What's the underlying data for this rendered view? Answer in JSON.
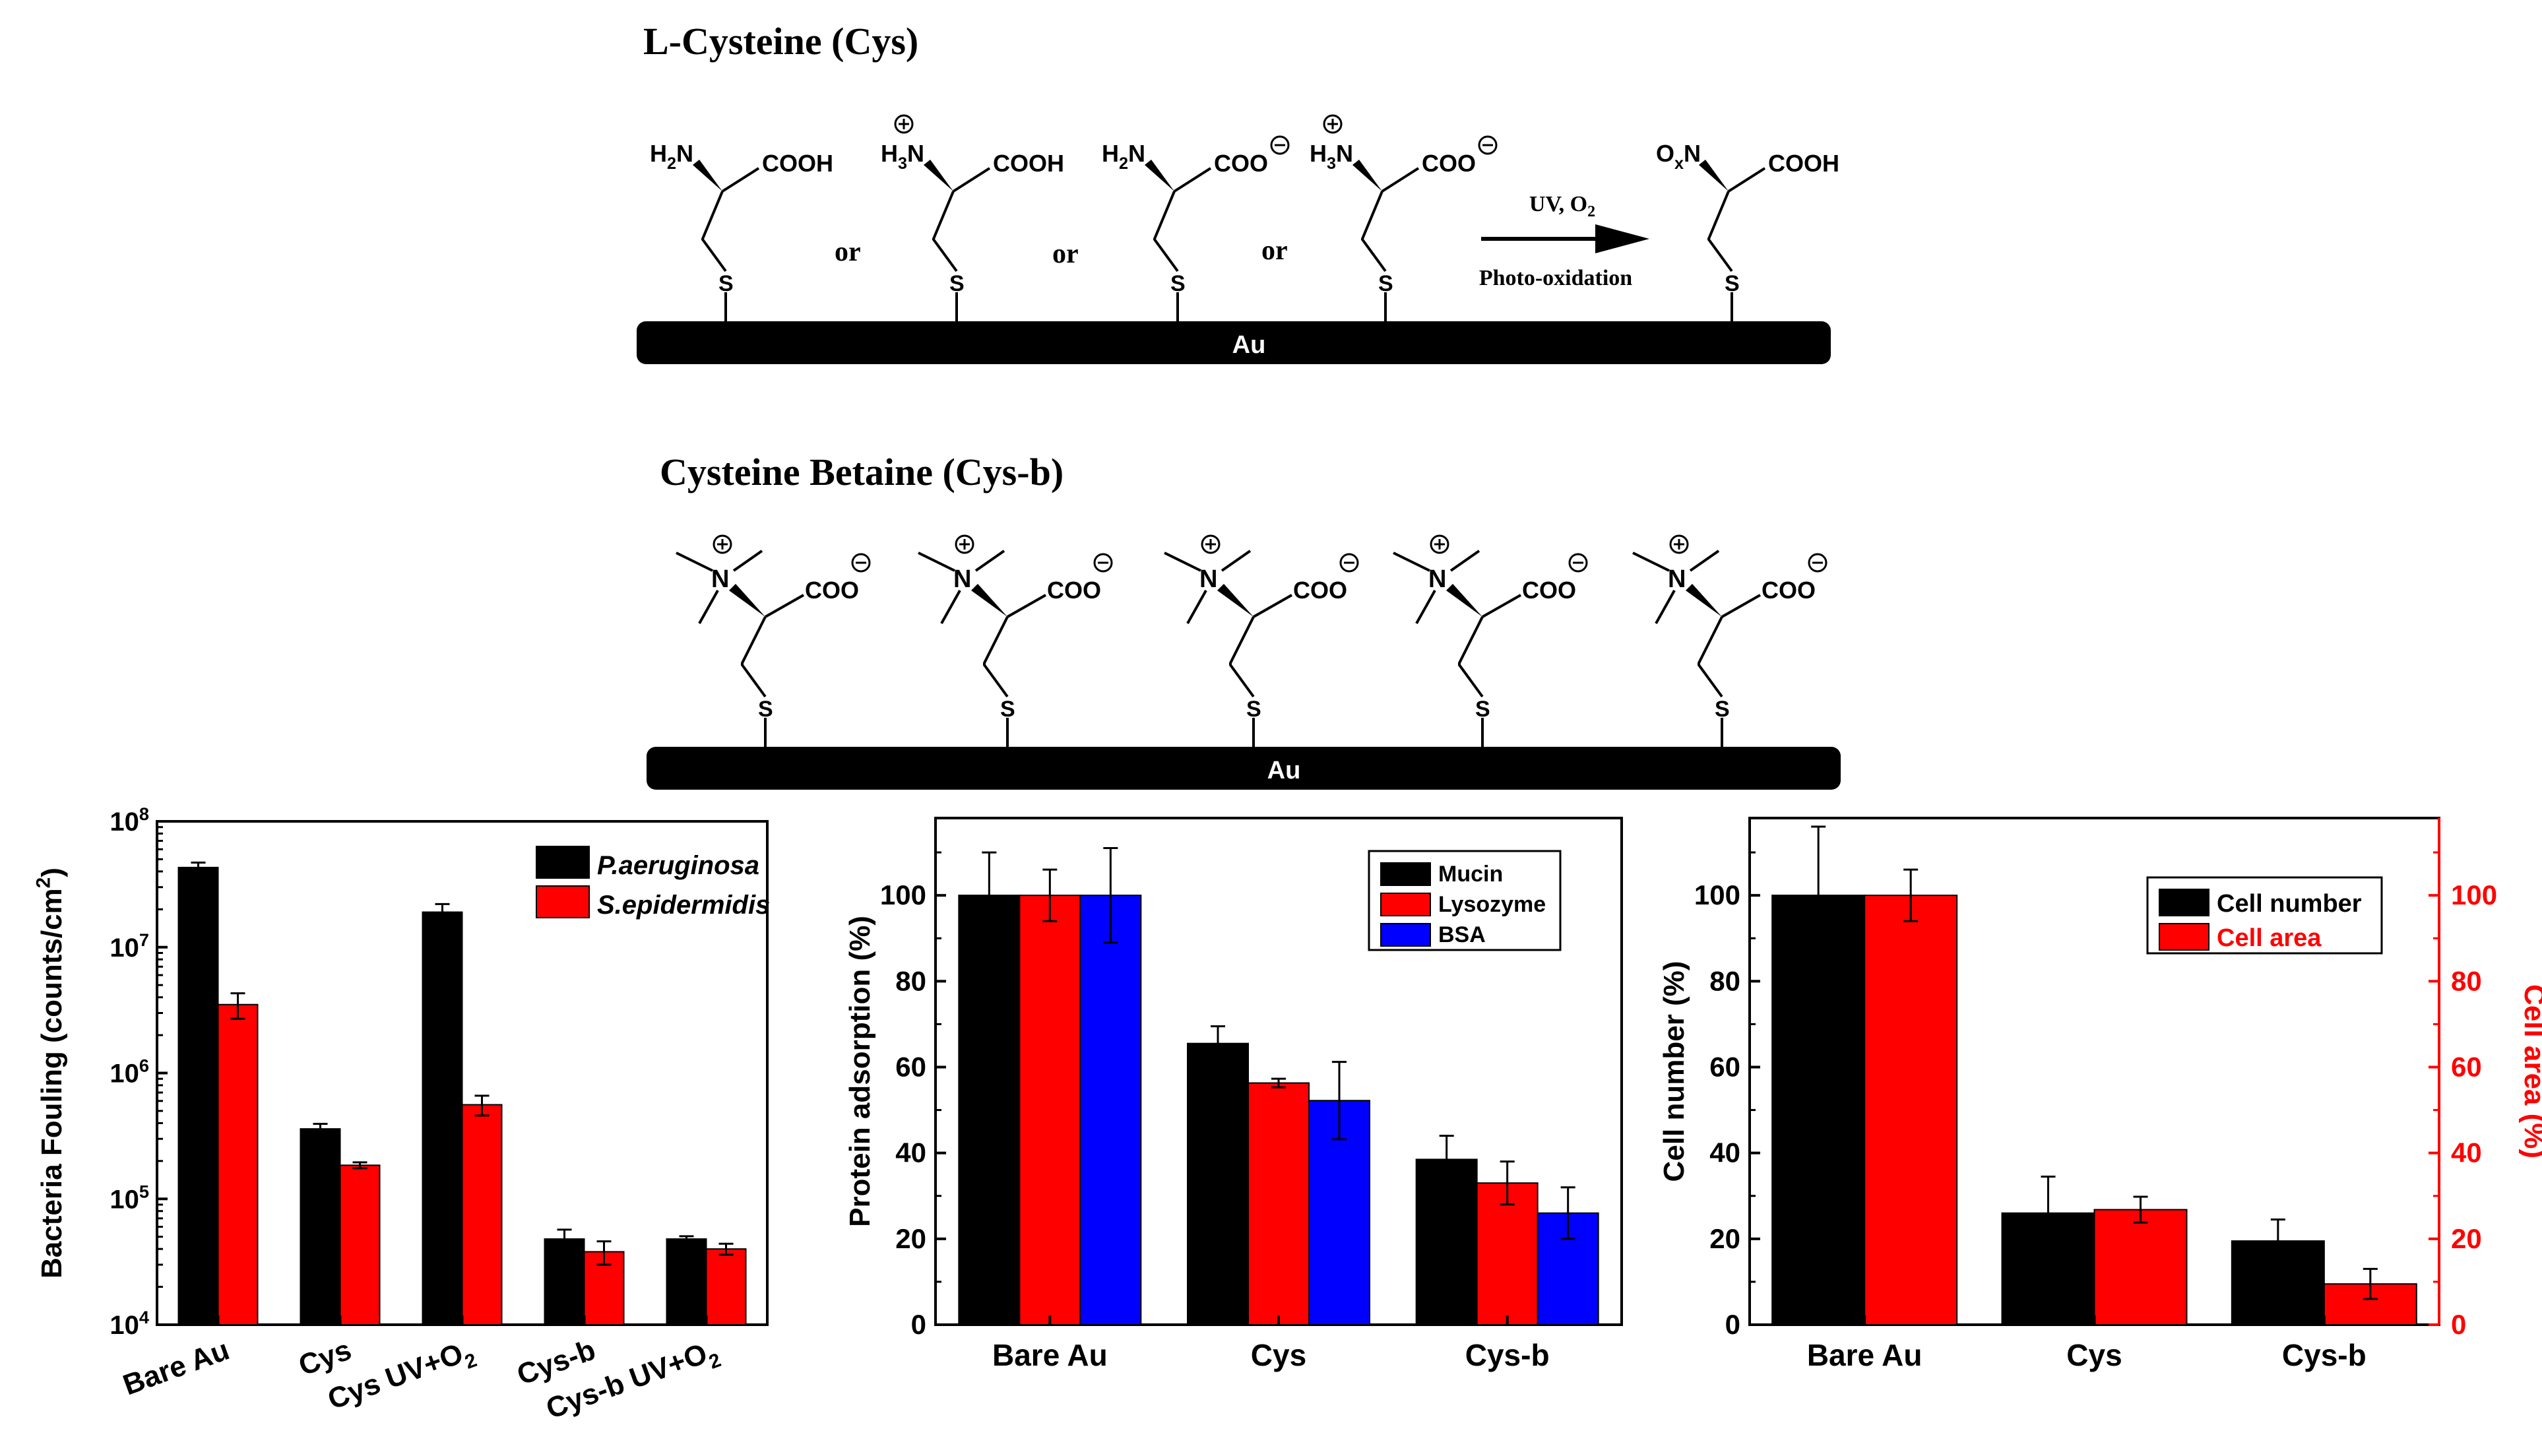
{
  "scheme": {
    "cys_title": "L-Cysteine (Cys)",
    "cysb_title": "Cysteine Betaine (Cys-b)",
    "surface_label": "Au",
    "or_label": "or",
    "arrow_top": "UV, O2",
    "arrow_bottom": "Photo-oxidation",
    "cys_forms": [
      {
        "amine": "H2N",
        "acid": "COOH",
        "amine_charge": "",
        "acid_charge": ""
      },
      {
        "amine": "H3N",
        "acid": "COOH",
        "amine_charge": "⊕",
        "acid_charge": ""
      },
      {
        "amine": "H2N",
        "acid": "COO",
        "amine_charge": "",
        "acid_charge": "⊖"
      },
      {
        "amine": "H3N",
        "acid": "COO",
        "amine_charge": "⊕",
        "acid_charge": "⊖"
      }
    ],
    "oxidized_form": {
      "amine": "OxN",
      "acid": "COOH"
    },
    "thiol_label": "S",
    "betaine_amine": "N",
    "betaine_acid": "COO",
    "betaine_count": 5
  },
  "chart_data": [
    {
      "type": "bar",
      "categories": [
        "Bare Au",
        "Cys",
        "Cys UV+O2",
        "Cys-b",
        "Cys-b UV+O2"
      ],
      "ylabel": "Bacteria Fouling (counts/cm2)",
      "yscale": "log",
      "ylim": [
        10000,
        100000000
      ],
      "yticks": [
        "10^4",
        "10^5",
        "10^6",
        "10^7",
        "10^8"
      ],
      "legend_position": "top-right",
      "series": [
        {
          "name": "P.aeruginosa",
          "color": "#000000",
          "values": [
            43000000,
            360000,
            19000000,
            48000,
            48000
          ],
          "errors": [
            4000000,
            35000,
            3000000,
            9000,
            2500
          ]
        },
        {
          "name": "S.epidermidis",
          "color": "#ff0000",
          "values": [
            3500000,
            185000,
            560000,
            38000,
            40000
          ],
          "errors": [
            800000,
            10000,
            100000,
            8000,
            4000
          ]
        }
      ]
    },
    {
      "type": "bar",
      "categories": [
        "Bare Au",
        "Cys",
        "Cys-b"
      ],
      "ylabel": "Protein adsorption (%)",
      "ylim": [
        0,
        118
      ],
      "yticks": [
        0,
        20,
        40,
        60,
        80,
        100
      ],
      "legend_position": "top-right",
      "series": [
        {
          "name": "Mucin",
          "color": "#000000",
          "values": [
            100,
            65.5,
            38.5
          ],
          "errors": [
            10,
            4,
            5.5
          ]
        },
        {
          "name": "Lysozyme",
          "color": "#ff0000",
          "values": [
            100,
            56.3,
            33
          ],
          "errors": [
            6,
            1,
            5
          ]
        },
        {
          "name": "BSA",
          "color": "#0000ff",
          "values": [
            100,
            52.2,
            26
          ],
          "errors": [
            11,
            9,
            6
          ]
        }
      ]
    },
    {
      "type": "bar",
      "categories": [
        "Bare Au",
        "Cys",
        "Cys-b"
      ],
      "ylabel": "Cell number (%)",
      "ylabel_right": "Cell area (%)",
      "ylim": [
        0,
        118
      ],
      "yticks": [
        0,
        20,
        40,
        60,
        80,
        100
      ],
      "legend_position": "top-right",
      "series": [
        {
          "name": "Cell number",
          "color": "#000000",
          "values": [
            100,
            26,
            19.5
          ],
          "errors": [
            16,
            8.5,
            5
          ]
        },
        {
          "name": "Cell area",
          "color": "#ff0000",
          "values": [
            100,
            26.8,
            9.5
          ],
          "errors": [
            6,
            3,
            3.5
          ]
        }
      ]
    }
  ]
}
